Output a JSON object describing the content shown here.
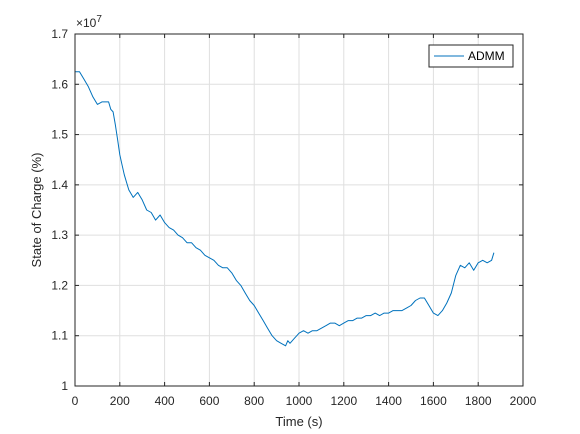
{
  "chart_data": {
    "type": "line",
    "title": "",
    "xlabel": "Time (s)",
    "ylabel": "State of Charge (%)",
    "xlim": [
      0,
      2000
    ],
    "ylim": [
      1.0,
      1.7
    ],
    "y_exponent_label": "×10",
    "y_exponent_power": "7",
    "x_ticks": [
      "0",
      "200",
      "400",
      "600",
      "800",
      "1000",
      "1200",
      "1400",
      "1600",
      "1800",
      "2000"
    ],
    "y_ticks": [
      "1",
      "1.1",
      "1.2",
      "1.3",
      "1.4",
      "1.5",
      "1.6",
      "1.7"
    ],
    "grid": true,
    "legend_position": "top-right",
    "colors": {
      "series": "#0072BD",
      "grid": "#dfdfdf",
      "axis": "#262626"
    },
    "series": [
      {
        "name": "ADMM",
        "x": [
          0,
          20,
          40,
          60,
          80,
          100,
          120,
          150,
          160,
          170,
          180,
          190,
          200,
          210,
          220,
          240,
          260,
          280,
          300,
          320,
          340,
          360,
          380,
          400,
          420,
          440,
          460,
          480,
          500,
          520,
          540,
          560,
          580,
          600,
          620,
          640,
          660,
          680,
          700,
          720,
          740,
          760,
          780,
          800,
          820,
          840,
          860,
          880,
          900,
          920,
          940,
          950,
          960,
          970,
          980,
          990,
          1000,
          1020,
          1040,
          1060,
          1080,
          1100,
          1120,
          1140,
          1160,
          1180,
          1200,
          1220,
          1240,
          1260,
          1280,
          1300,
          1320,
          1340,
          1360,
          1380,
          1400,
          1420,
          1440,
          1460,
          1480,
          1500,
          1520,
          1540,
          1560,
          1580,
          1600,
          1620,
          1640,
          1660,
          1680,
          1700,
          1720,
          1740,
          1760,
          1780,
          1800,
          1820,
          1840,
          1860,
          1870
        ],
        "values": [
          1.625,
          1.625,
          1.61,
          1.595,
          1.575,
          1.56,
          1.565,
          1.565,
          1.55,
          1.545,
          1.52,
          1.49,
          1.46,
          1.44,
          1.42,
          1.39,
          1.375,
          1.385,
          1.37,
          1.35,
          1.345,
          1.33,
          1.34,
          1.325,
          1.315,
          1.31,
          1.3,
          1.295,
          1.285,
          1.285,
          1.275,
          1.27,
          1.26,
          1.255,
          1.25,
          1.24,
          1.235,
          1.235,
          1.225,
          1.21,
          1.2,
          1.185,
          1.17,
          1.16,
          1.145,
          1.13,
          1.115,
          1.1,
          1.09,
          1.085,
          1.08,
          1.09,
          1.085,
          1.09,
          1.095,
          1.1,
          1.105,
          1.11,
          1.105,
          1.11,
          1.11,
          1.115,
          1.12,
          1.125,
          1.125,
          1.12,
          1.125,
          1.13,
          1.13,
          1.135,
          1.135,
          1.14,
          1.14,
          1.145,
          1.14,
          1.145,
          1.145,
          1.15,
          1.15,
          1.15,
          1.155,
          1.16,
          1.17,
          1.175,
          1.175,
          1.16,
          1.145,
          1.14,
          1.15,
          1.165,
          1.185,
          1.22,
          1.24,
          1.235,
          1.245,
          1.23,
          1.245,
          1.25,
          1.245,
          1.25,
          1.265
        ]
      }
    ]
  }
}
